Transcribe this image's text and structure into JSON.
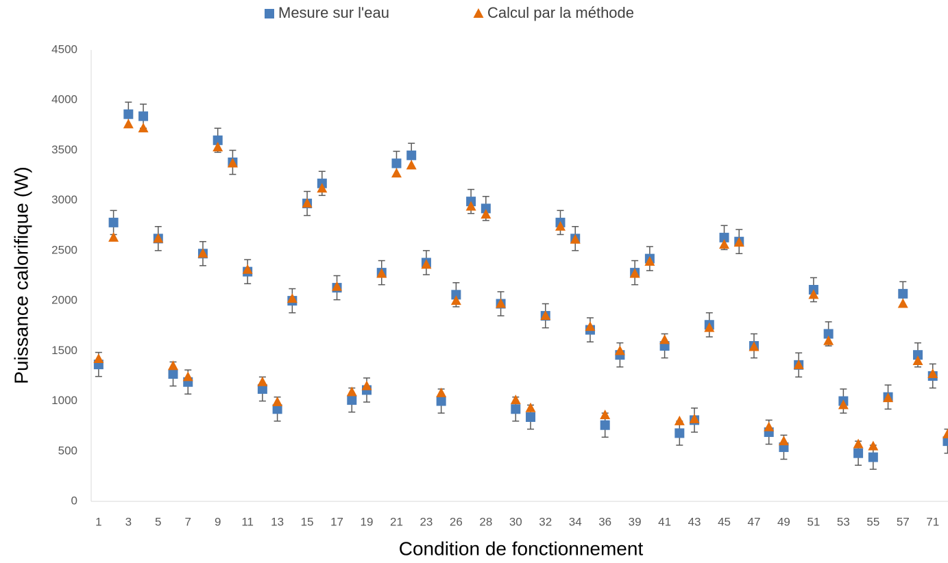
{
  "chart_data": {
    "type": "scatter",
    "x_label": "Condition de fonctionnement",
    "y_label": "Puissance calorifique (W)",
    "categories": [
      "1",
      null,
      "3",
      null,
      "5",
      null,
      "7",
      null,
      "9",
      null,
      "11",
      null,
      "13",
      null,
      "15",
      null,
      "17",
      null,
      "19",
      null,
      "21",
      null,
      "23",
      null,
      "26",
      null,
      "28",
      null,
      "30",
      null,
      "32",
      null,
      "34",
      null,
      "36",
      null,
      "39",
      null,
      "41",
      null,
      "43",
      null,
      "45",
      null,
      "47",
      null,
      "49",
      null,
      "51",
      null,
      "53",
      null,
      "55",
      null,
      "57",
      null,
      "71",
      null
    ],
    "series": [
      {
        "name": "Mesure sur l'eau",
        "color": "#4a7ebb",
        "marker": "square",
        "error": 120,
        "error_color": "#595959",
        "values": [
          1365,
          2780,
          3860,
          3840,
          2620,
          1270,
          1190,
          2470,
          3600,
          3380,
          2290,
          1120,
          920,
          2000,
          2970,
          3170,
          2130,
          1010,
          1110,
          2280,
          3370,
          3450,
          2380,
          1000,
          2060,
          2990,
          2920,
          1970,
          920,
          840,
          1850,
          2780,
          2620,
          1710,
          760,
          1460,
          2280,
          2420,
          1550,
          680,
          810,
          1760,
          2630,
          2590,
          1550,
          690,
          540,
          1360,
          2110,
          1670,
          1000,
          480,
          440,
          1040,
          2070,
          1460,
          1250,
          600
        ]
      },
      {
        "name": "Calcul par la méthode",
        "color": "#e46c0a",
        "marker": "triangle",
        "values": [
          1420,
          2630,
          3760,
          3720,
          2620,
          1350,
          1240,
          2470,
          3530,
          3370,
          2310,
          1190,
          990,
          2020,
          2970,
          3120,
          2140,
          1090,
          1150,
          2270,
          3270,
          3350,
          2360,
          1080,
          2000,
          2940,
          2860,
          1970,
          1010,
          930,
          1850,
          2740,
          2610,
          1740,
          860,
          1500,
          2270,
          2390,
          1610,
          800,
          820,
          1730,
          2560,
          2580,
          1540,
          740,
          600,
          1360,
          2060,
          1600,
          960,
          570,
          550,
          1030,
          1970,
          1400,
          1270,
          670
        ]
      }
    ],
    "ylim": [
      0,
      4500
    ],
    "yticks": [
      0,
      500,
      1000,
      1500,
      2000,
      2500,
      3000,
      3500,
      4000,
      4500
    ],
    "grid": false,
    "legend": "top"
  }
}
